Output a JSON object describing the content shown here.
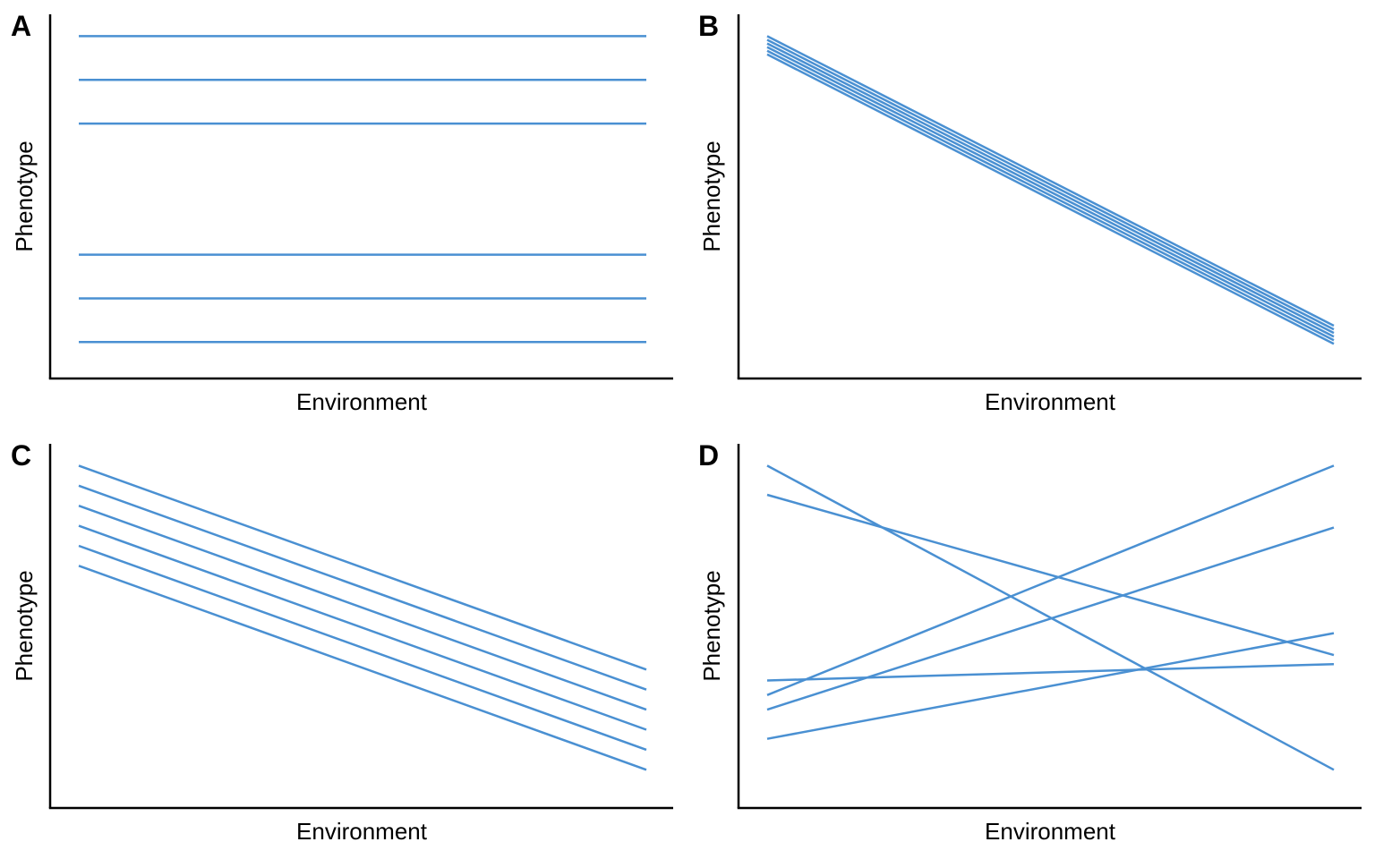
{
  "style": {
    "line_color": "#4a90d2",
    "axis_color": "#000000",
    "background": "#ffffff"
  },
  "chart_data": [
    {
      "panel": "A",
      "type": "line",
      "xlabel": "Environment",
      "ylabel": "Phenotype",
      "xlim": [
        0,
        1
      ],
      "ylim": [
        0,
        1
      ],
      "x": [
        0,
        1
      ],
      "series": [
        {
          "values": [
            0.94,
            0.94
          ]
        },
        {
          "values": [
            0.82,
            0.82
          ]
        },
        {
          "values": [
            0.7,
            0.7
          ]
        },
        {
          "values": [
            0.34,
            0.34
          ]
        },
        {
          "values": [
            0.22,
            0.22
          ]
        },
        {
          "values": [
            0.1,
            0.1
          ]
        }
      ]
    },
    {
      "panel": "B",
      "type": "line",
      "xlabel": "Environment",
      "ylabel": "Phenotype",
      "xlim": [
        0,
        1
      ],
      "ylim": [
        0,
        1
      ],
      "x": [
        0,
        1
      ],
      "series": [
        {
          "values": [
            0.94,
            0.145
          ]
        },
        {
          "values": [
            0.93,
            0.135
          ]
        },
        {
          "values": [
            0.92,
            0.125
          ]
        },
        {
          "values": [
            0.91,
            0.115
          ]
        },
        {
          "values": [
            0.9,
            0.105
          ]
        },
        {
          "values": [
            0.89,
            0.095
          ]
        }
      ]
    },
    {
      "panel": "C",
      "type": "line",
      "xlabel": "Environment",
      "ylabel": "Phenotype",
      "xlim": [
        0,
        1
      ],
      "ylim": [
        0,
        1
      ],
      "x": [
        0,
        1
      ],
      "series": [
        {
          "values": [
            0.94,
            0.38
          ]
        },
        {
          "values": [
            0.885,
            0.325
          ]
        },
        {
          "values": [
            0.83,
            0.27
          ]
        },
        {
          "values": [
            0.775,
            0.215
          ]
        },
        {
          "values": [
            0.72,
            0.16
          ]
        },
        {
          "values": [
            0.665,
            0.105
          ]
        }
      ]
    },
    {
      "panel": "D",
      "type": "line",
      "xlabel": "Environment",
      "ylabel": "Phenotype",
      "xlim": [
        0,
        1
      ],
      "ylim": [
        0,
        1
      ],
      "x": [
        0,
        1
      ],
      "series": [
        {
          "values": [
            0.94,
            0.105
          ]
        },
        {
          "values": [
            0.86,
            0.42
          ]
        },
        {
          "values": [
            0.31,
            0.94
          ]
        },
        {
          "values": [
            0.27,
            0.77
          ]
        },
        {
          "values": [
            0.35,
            0.395
          ]
        },
        {
          "values": [
            0.19,
            0.48
          ]
        }
      ]
    }
  ]
}
